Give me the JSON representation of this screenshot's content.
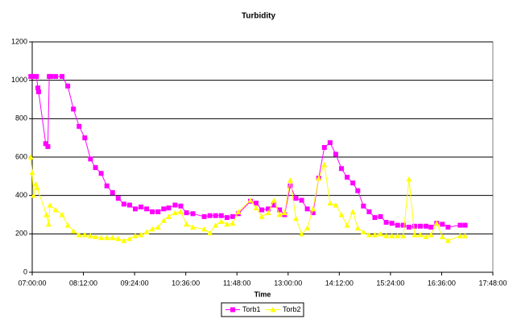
{
  "chart_data": {
    "type": "line",
    "title": "Turbidity",
    "x_label": "Time",
    "xlim": [
      420,
      1068
    ],
    "xticks": [
      {
        "value": 420,
        "label": "07:00:00"
      },
      {
        "value": 492,
        "label": "08:12:00"
      },
      {
        "value": 564,
        "label": "09:24:00"
      },
      {
        "value": 636,
        "label": "10:36:00"
      },
      {
        "value": 708,
        "label": "11:48:00"
      },
      {
        "value": 780,
        "label": "13:00:00"
      },
      {
        "value": 852,
        "label": "14:12:00"
      },
      {
        "value": 924,
        "label": "15:24:00"
      },
      {
        "value": 996,
        "label": "16:36:00"
      },
      {
        "value": 1068,
        "label": "17:48:00"
      }
    ],
    "ylim": [
      0,
      1200
    ],
    "yticks": [
      0,
      200,
      400,
      600,
      800,
      1000,
      1200
    ],
    "grid": true,
    "legend": "bottom",
    "series": [
      {
        "name": "Torb1",
        "color": "#ff00ff",
        "marker": "square",
        "x": [
          418,
          421,
          426,
          428,
          429,
          439,
          442,
          444,
          446,
          453,
          462,
          470,
          478,
          486,
          494,
          502,
          509,
          517,
          525,
          533,
          541,
          549,
          557,
          565,
          573,
          581,
          589,
          597,
          605,
          612,
          621,
          629,
          637,
          646,
          662,
          670,
          678,
          686,
          694,
          702,
          710,
          727,
          735,
          743,
          752,
          760,
          768,
          775,
          783,
          791,
          799,
          807,
          815,
          823,
          831,
          839,
          847,
          855,
          863,
          871,
          878,
          886,
          894,
          902,
          910,
          918,
          926,
          934,
          942,
          950,
          958,
          966,
          974,
          981,
          989,
          997,
          1005,
          1022,
          1029
        ],
        "values": [
          1020,
          1020,
          1020,
          960,
          940,
          670,
          655,
          1020,
          1020,
          1020,
          1020,
          970,
          850,
          760,
          700,
          590,
          545,
          515,
          450,
          415,
          385,
          355,
          350,
          330,
          340,
          330,
          315,
          315,
          330,
          335,
          350,
          345,
          310,
          305,
          290,
          295,
          295,
          295,
          285,
          290,
          305,
          370,
          360,
          325,
          330,
          350,
          325,
          300,
          450,
          385,
          375,
          330,
          310,
          490,
          650,
          675,
          615,
          540,
          495,
          465,
          425,
          345,
          315,
          285,
          290,
          260,
          255,
          245,
          245,
          235,
          240,
          240,
          240,
          235,
          255,
          250,
          235,
          245,
          245
        ]
      },
      {
        "name": "Torb2",
        "color": "#ffff00",
        "marker": "triangle",
        "x": [
          418,
          420,
          422,
          425,
          427,
          440,
          443,
          445,
          453,
          462,
          470,
          478,
          486,
          494,
          502,
          509,
          517,
          525,
          533,
          541,
          549,
          557,
          565,
          573,
          581,
          589,
          597,
          605,
          612,
          621,
          629,
          637,
          646,
          662,
          670,
          678,
          686,
          694,
          702,
          710,
          727,
          735,
          743,
          752,
          760,
          768,
          775,
          783,
          791,
          799,
          807,
          815,
          823,
          831,
          839,
          847,
          855,
          863,
          871,
          878,
          886,
          894,
          902,
          910,
          918,
          926,
          934,
          942,
          950,
          958,
          966,
          974,
          981,
          989,
          997,
          1005,
          1022,
          1029
        ],
        "values": [
          600,
          520,
          400,
          460,
          440,
          300,
          250,
          350,
          325,
          300,
          245,
          215,
          195,
          195,
          190,
          185,
          180,
          180,
          180,
          175,
          165,
          175,
          190,
          195,
          210,
          225,
          235,
          270,
          290,
          310,
          315,
          250,
          235,
          225,
          205,
          245,
          265,
          250,
          255,
          315,
          375,
          335,
          290,
          310,
          375,
          300,
          310,
          480,
          280,
          200,
          230,
          330,
          490,
          560,
          360,
          350,
          300,
          245,
          315,
          230,
          210,
          195,
          195,
          200,
          190,
          190,
          190,
          190,
          485,
          195,
          195,
          185,
          195,
          255,
          185,
          165,
          190,
          190
        ]
      }
    ]
  }
}
